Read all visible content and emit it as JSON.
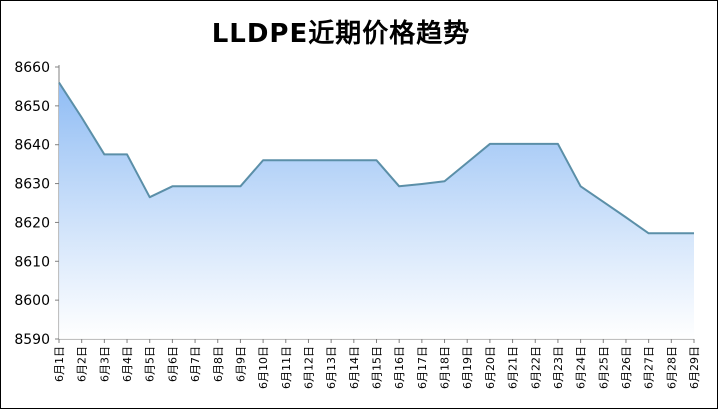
{
  "chart_data": {
    "type": "area",
    "title": "LLDPE近期价格趋势",
    "xlabel": "",
    "ylabel": "",
    "ylim": [
      8590,
      8660
    ],
    "yticks": [
      8590,
      8600,
      8610,
      8620,
      8630,
      8640,
      8650,
      8660
    ],
    "grid": false,
    "legend": "none",
    "colors": {
      "line": "#5b8fa8",
      "fill_top": "#8fbcf4",
      "fill_bottom": "#ffffff",
      "axis": "#808080"
    },
    "categories": [
      "6月1日",
      "6月2日",
      "6月3日",
      "6月4日",
      "6月5日",
      "6月6日",
      "6月7日",
      "6月8日",
      "6月9日",
      "6月10日",
      "6月11日",
      "6月12日",
      "6月13日",
      "6月14日",
      "6月15日",
      "6月16日",
      "6月17日",
      "6月18日",
      "6月19日",
      "6月20日",
      "6月21日",
      "6月22日",
      "6月23日",
      "6月24日",
      "6月25日",
      "6月26日",
      "6月27日",
      "6月28日",
      "6月29日"
    ],
    "values": [
      8656,
      8647,
      8637.5,
      8637.5,
      8626.5,
      8629.3,
      8629.3,
      8629.3,
      8629.3,
      8636,
      8636,
      8636,
      8636,
      8636,
      8636,
      8629.3,
      8629.9,
      8630.6,
      8635.4,
      8640.2,
      8640.2,
      8640.2,
      8640.2,
      8629.3,
      8625.3,
      8621.3,
      8617.2,
      8617.2,
      8617.2
    ]
  }
}
